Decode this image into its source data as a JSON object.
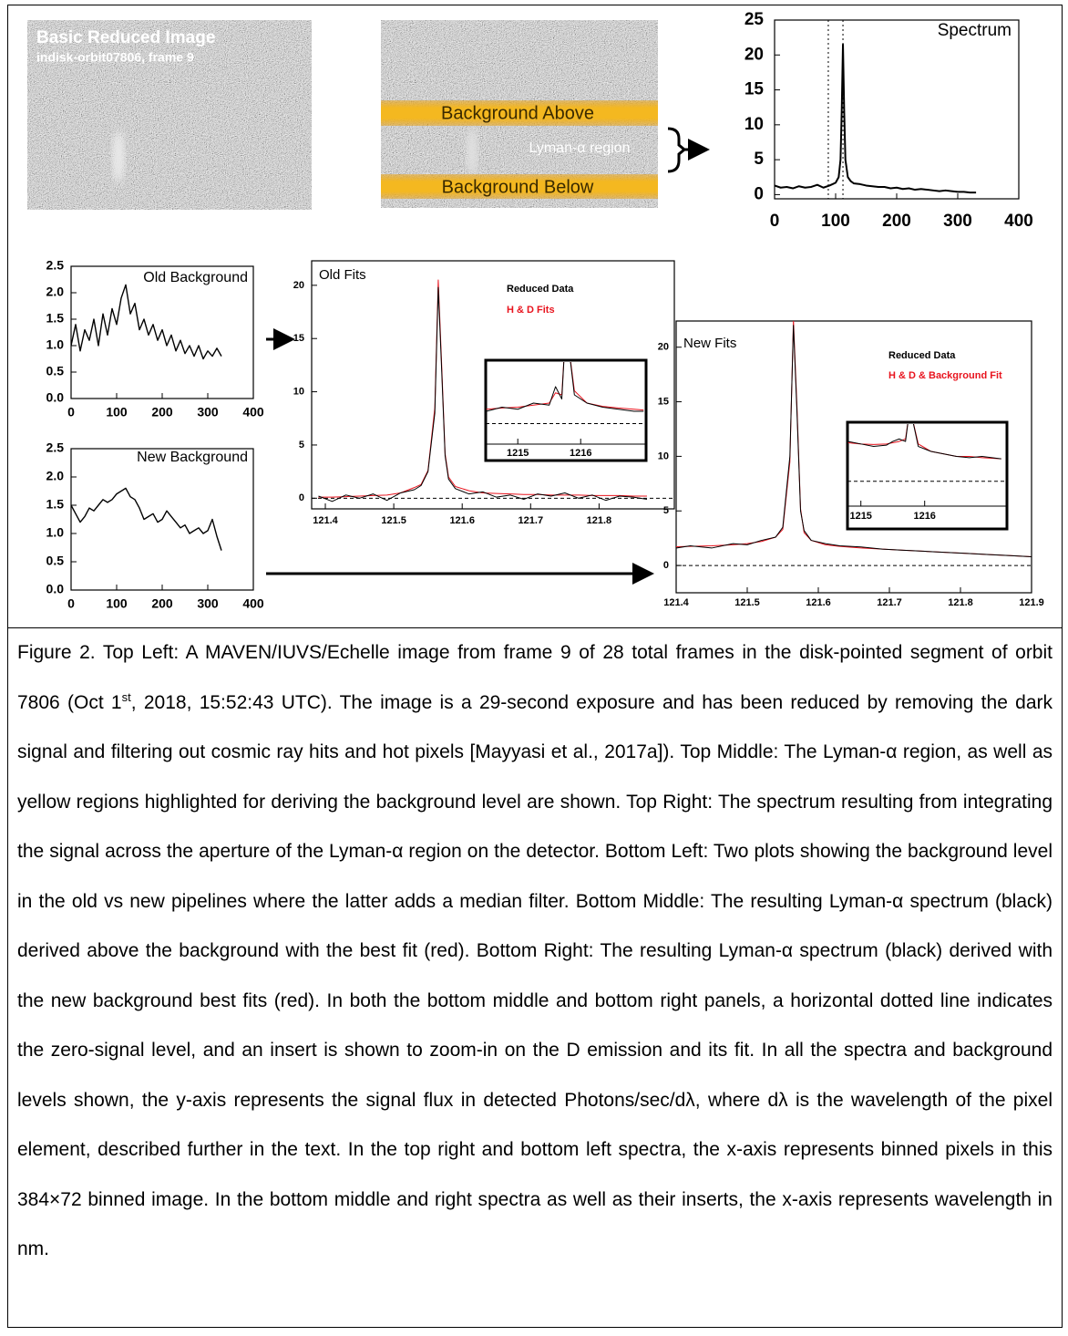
{
  "chart_data": [
    {
      "type": "line",
      "title": "Spectrum",
      "color": "#000000",
      "x": [
        0,
        10,
        20,
        30,
        40,
        50,
        60,
        70,
        80,
        90,
        95,
        100,
        105,
        108,
        110,
        112,
        114,
        116,
        120,
        125,
        130,
        140,
        150,
        160,
        170,
        180,
        190,
        200,
        210,
        220,
        230,
        240,
        250,
        260,
        270,
        280,
        290,
        300,
        310,
        320,
        330
      ],
      "values": [
        1.3,
        1.0,
        1.1,
        0.9,
        1.2,
        1.0,
        1.1,
        1.4,
        1.0,
        1.3,
        1.5,
        1.7,
        2.5,
        5,
        12,
        21.5,
        12,
        5,
        2.5,
        1.9,
        1.6,
        1.5,
        1.3,
        1.2,
        1.1,
        1.1,
        0.9,
        1.0,
        0.8,
        0.9,
        0.7,
        0.8,
        0.7,
        0.6,
        0.5,
        0.6,
        0.5,
        0.4,
        0.4,
        0.3,
        0.3
      ],
      "vlines": [
        88,
        112
      ],
      "xlim": [
        0,
        400
      ],
      "xticks": [
        0,
        100,
        200,
        300,
        400
      ],
      "ylim": [
        -0.6,
        25
      ],
      "yticks": [
        0,
        5,
        10,
        15,
        20,
        25
      ]
    },
    {
      "type": "line",
      "title": "Old Background",
      "color": "#000000",
      "x": [
        0,
        10,
        20,
        30,
        40,
        50,
        60,
        70,
        80,
        90,
        100,
        110,
        120,
        130,
        140,
        150,
        160,
        170,
        180,
        190,
        200,
        210,
        220,
        230,
        240,
        250,
        260,
        270,
        280,
        290,
        300,
        310,
        320,
        330
      ],
      "values": [
        1.0,
        1.4,
        0.9,
        1.3,
        1.1,
        1.5,
        1.0,
        1.6,
        1.2,
        1.7,
        1.4,
        1.9,
        2.15,
        1.6,
        1.8,
        1.3,
        1.5,
        1.2,
        1.4,
        1.1,
        1.3,
        1.0,
        1.2,
        0.9,
        1.1,
        0.85,
        1.0,
        0.8,
        1.0,
        0.75,
        0.9,
        0.8,
        0.95,
        0.8
      ],
      "xlim": [
        0,
        400
      ],
      "xticks": [
        0,
        100,
        200,
        300,
        400
      ],
      "ylim": [
        0,
        2.5
      ],
      "yticks": [
        {
          "value": 0,
          "label": "0.0"
        },
        0.5,
        {
          "value": 1,
          "label": "1.0"
        },
        1.5,
        {
          "value": 2,
          "label": "2.0"
        },
        2.5
      ]
    },
    {
      "type": "line",
      "title": "New Background",
      "color": "#000000",
      "x": [
        0,
        10,
        20,
        30,
        40,
        50,
        60,
        70,
        80,
        90,
        100,
        110,
        120,
        130,
        140,
        150,
        160,
        170,
        180,
        190,
        200,
        210,
        220,
        230,
        240,
        250,
        260,
        270,
        280,
        290,
        300,
        310,
        320,
        330
      ],
      "values": [
        1.5,
        1.35,
        1.2,
        1.3,
        1.45,
        1.4,
        1.5,
        1.6,
        1.55,
        1.6,
        1.7,
        1.75,
        1.8,
        1.65,
        1.6,
        1.45,
        1.25,
        1.3,
        1.35,
        1.2,
        1.25,
        1.4,
        1.3,
        1.2,
        1.1,
        1.15,
        1.0,
        1.05,
        1.1,
        1.0,
        1.05,
        1.25,
        0.95,
        0.7
      ],
      "xlim": [
        0,
        400
      ],
      "xticks": [
        0,
        100,
        200,
        300,
        400
      ],
      "ylim": [
        0,
        2.5
      ],
      "yticks": [
        {
          "value": 0,
          "label": "0.0"
        },
        0.5,
        {
          "value": 1,
          "label": "1.0"
        },
        1.5,
        {
          "value": 2,
          "label": "2.0"
        },
        2.5
      ]
    },
    {
      "type": "line",
      "title": "Old Fits",
      "x": [
        121.39,
        121.41,
        121.43,
        121.45,
        121.47,
        121.49,
        121.51,
        121.53,
        121.54,
        121.55,
        121.56,
        121.565,
        121.57,
        121.575,
        121.58,
        121.59,
        121.61,
        121.63,
        121.65,
        121.67,
        121.69,
        121.71,
        121.73,
        121.75,
        121.77,
        121.79,
        121.81,
        121.83,
        121.85,
        121.87
      ],
      "series": [
        {
          "name": "Reduced Data",
          "color": "#000000",
          "values": [
            0.2,
            -0.3,
            0.3,
            0,
            0.4,
            -0.2,
            0.5,
            0.8,
            1.2,
            2.5,
            8,
            19.8,
            12,
            4,
            1.8,
            0.9,
            0.4,
            0.6,
            0.1,
            0.3,
            -0.1,
            0.4,
            0.2,
            0.5,
            0,
            0.3,
            -0.2,
            0.2,
            0.1,
            -0.1
          ]
        },
        {
          "name": "H & D Fits",
          "color": "#e8141e",
          "values": [
            0.1,
            0.1,
            0.15,
            0.2,
            0.25,
            0.3,
            0.5,
            1.0,
            1.3,
            2.6,
            8.5,
            20.5,
            12.5,
            4.2,
            2.0,
            1.1,
            0.7,
            0.5,
            0.45,
            0.4,
            0.35,
            0.35,
            0.3,
            0.3,
            0.3,
            0.25,
            0.25,
            0.25,
            0.2,
            0.2
          ]
        }
      ],
      "hlines": [
        0
      ],
      "xlim": [
        121.38,
        121.91
      ],
      "xticks": [
        121.4,
        121.5,
        121.6,
        121.7,
        121.8
      ],
      "ylim": [
        -1,
        22.3
      ],
      "yticks": [
        0,
        5,
        10,
        15,
        20
      ],
      "inset": {
        "type": "line",
        "x": [
          1214.5,
          1214.75,
          1215,
          1215.25,
          1215.5,
          1215.6,
          1215.7,
          1215.75,
          1215.8,
          1215.9,
          1216.1,
          1216.35,
          1216.6,
          1216.85,
          1217.0
        ],
        "series": [
          {
            "color": "#000000",
            "values": [
              0.3,
              0.4,
              0.35,
              0.5,
              0.45,
              0.9,
              0.6,
              2,
              2,
              0.7,
              0.5,
              0.4,
              0.35,
              0.3,
              0.3
            ]
          },
          {
            "color": "#e8141e",
            "values": [
              0.35,
              0.38,
              0.4,
              0.45,
              0.5,
              0.75,
              0.7,
              2,
              2,
              0.8,
              0.5,
              0.42,
              0.38,
              0.35,
              0.33
            ]
          }
        ],
        "hlines": [
          0
        ],
        "xlim": [
          1214.49,
          1217.04
        ],
        "xticks": [
          1215,
          1216
        ],
        "ylim": [
          -0.5,
          1.5
        ]
      }
    },
    {
      "type": "line",
      "title": "New Fits",
      "x": [
        121.39,
        121.42,
        121.45,
        121.48,
        121.5,
        121.52,
        121.54,
        121.55,
        121.56,
        121.565,
        121.57,
        121.575,
        121.58,
        121.59,
        121.61,
        121.63,
        121.66,
        121.69,
        121.72,
        121.75,
        121.78,
        121.81,
        121.84,
        121.87,
        121.9
      ],
      "series": [
        {
          "name": "Reduced Data",
          "color": "#000000",
          "values": [
            1.5,
            1.8,
            1.6,
            2.0,
            1.9,
            2.3,
            2.6,
            3.5,
            10,
            22,
            14,
            5,
            3.2,
            2.3,
            2.0,
            1.8,
            1.7,
            1.5,
            1.4,
            1.3,
            1.2,
            1.1,
            1.0,
            0.9,
            0.8
          ]
        },
        {
          "name": "H & D & Background Fit",
          "color": "#e8141e",
          "values": [
            1.7,
            1.75,
            1.8,
            1.9,
            2.0,
            2.2,
            2.6,
            3.3,
            9.5,
            22.5,
            14.5,
            5.2,
            3.0,
            2.3,
            1.9,
            1.75,
            1.6,
            1.5,
            1.4,
            1.3,
            1.2,
            1.1,
            1.0,
            0.9,
            0.8
          ]
        }
      ],
      "hlines": [
        0
      ],
      "xlim": [
        121.4,
        121.9
      ],
      "xticks": [
        121.4,
        121.5,
        121.6,
        121.7,
        121.8,
        121.9
      ],
      "ylim": [
        -2.5,
        22.4
      ],
      "yticks": [
        0,
        5,
        10,
        15,
        20
      ],
      "inset": {
        "type": "line",
        "x": [
          1214.8,
          1215.0,
          1215.2,
          1215.4,
          1215.5,
          1215.6,
          1215.7,
          1215.75,
          1215.8,
          1215.9,
          1216.1,
          1216.3,
          1216.5,
          1216.7,
          1216.9,
          1217.2
        ],
        "series": [
          {
            "color": "#000000",
            "values": [
              1.6,
              1.5,
              1.4,
              1.45,
              1.6,
              1.7,
              1.6,
              2.6,
              2.6,
              1.4,
              1.2,
              1.1,
              1.0,
              0.95,
              1.0,
              0.9
            ]
          },
          {
            "color": "#e8141e",
            "values": [
              1.55,
              1.5,
              1.48,
              1.5,
              1.55,
              1.6,
              1.7,
              2.6,
              2.6,
              1.5,
              1.2,
              1.1,
              1.0,
              1.0,
              0.95,
              0.9
            ]
          }
        ],
        "hlines": [
          0
        ],
        "xlim": [
          1214.79,
          1217.29
        ],
        "xticks": [
          1215,
          1216
        ],
        "ylim": [
          -1,
          2.3
        ]
      }
    }
  ],
  "images": [
    {
      "title": "Basic Reduced Image",
      "subtitle": "indisk-orbit07806, frame 9"
    },
    {
      "labels": [
        "Background Above",
        "Lyman-α region",
        "Background Below"
      ]
    }
  ],
  "caption": {
    "before": "Figure 2. Top Left: A MAVEN/IUVS/Echelle image from frame 9 of 28 total frames in the disk-pointed segment of orbit 7806 (Oct 1",
    "superscript": "st",
    "after": ", 2018, 15:52:43 UTC). The image is a 29-second exposure and has been reduced by removing the dark signal and filtering out cosmic ray hits and hot pixels [Mayyasi et al., 2017a]). Top Middle: The Lyman-α region, as well as yellow regions highlighted for deriving the background level are shown. Top Right: The spectrum resulting from integrating the signal across the aperture of the Lyman-α region on the detector. Bottom Left: Two plots showing the background level in the old vs new pipelines where the latter adds a median filter. Bottom Middle:  The resulting Lyman-α spectrum (black) derived above the background with the best fit (red). Bottom Right: The resulting Lyman-α spectrum (black) derived with the new background best fits (red). In both the bottom middle and bottom right panels, a horizontal dotted line indicates the zero-signal level, and an insert is shown to zoom-in on the D emission and its fit. In all the spectra and background levels shown, the y-axis represents the signal flux in detected Photons/sec/dλ, where dλ is the wavelength of the pixel element, described further in the text. In the top right and bottom left spectra, the x-axis represents binned pixels in this 384×72 binned image. In the bottom middle and right spectra as well as their inserts, the x-axis represents wavelength in nm."
  }
}
